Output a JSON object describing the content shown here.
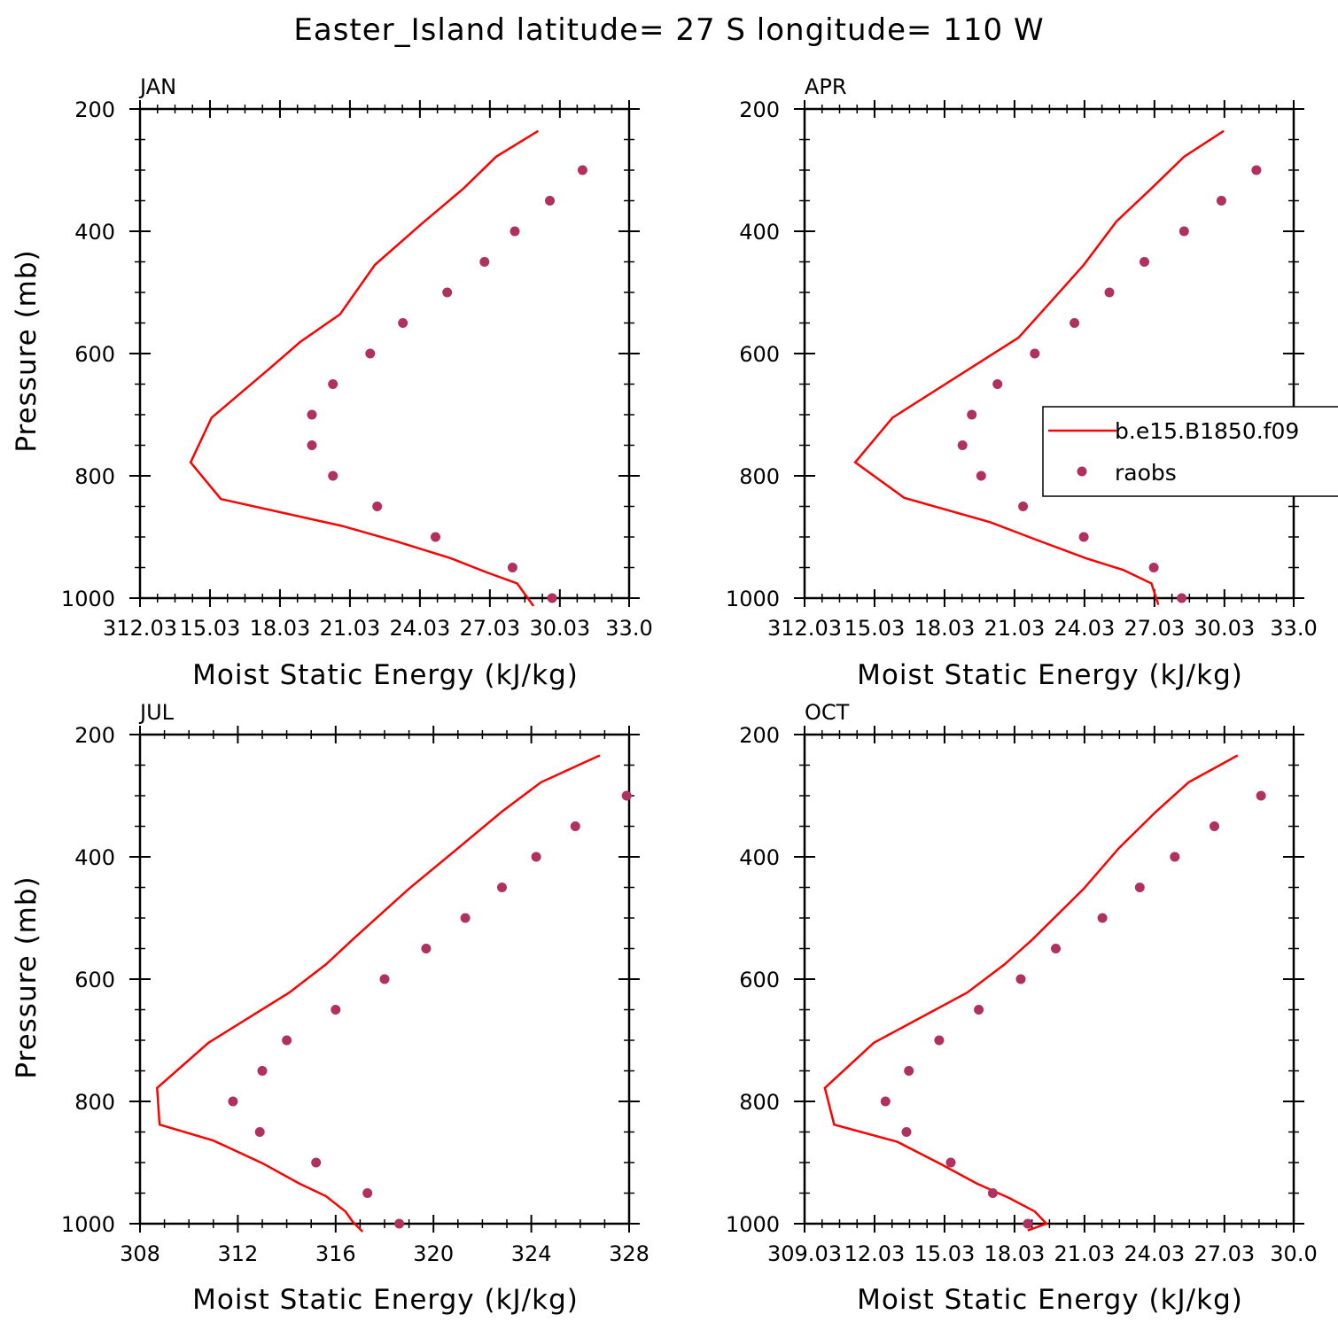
{
  "title": "Easter_Island  latitude= 27 S longitude= 110 W",
  "colors": {
    "model": "#ff0000",
    "obs": "#b03060",
    "axis": "#000000"
  },
  "legend": {
    "series": [
      "b.e15.B1850.f09",
      "raobs"
    ],
    "panel": 1
  },
  "chart_data": [
    {
      "type": "line",
      "panel_label": "JAN",
      "xlabel": "Moist Static Energy (kJ/kg)",
      "ylabel": "Pressure (mb)",
      "xlim": [
        312.03,
        333.0
      ],
      "ylim": [
        1000,
        200
      ],
      "xticks": [
        312.03,
        315.03,
        318.03,
        321.03,
        324.03,
        327.03,
        330.03,
        333.0
      ],
      "xtick_labels": [
        "312.03",
        "15.03",
        "18.03",
        "21.03",
        "24.03",
        "27.03",
        "30.03",
        "33.0"
      ],
      "yticks": [
        200,
        400,
        600,
        800,
        1000
      ],
      "ytick_labels": [
        "200",
        "400",
        "600",
        "800",
        "1000"
      ],
      "series": [
        {
          "name": "b.e15.B1850.f09",
          "kind": "line",
          "x": [
            329.1,
            327.3,
            325.9,
            324.1,
            322.1,
            320.6,
            318.9,
            317.6,
            315.1,
            314.2,
            315.5,
            320.7,
            323.0,
            325.3,
            326.9,
            328.2,
            328.9
          ],
          "y": [
            236,
            278,
            330,
            388,
            455,
            536,
            581,
            624,
            705,
            778,
            838,
            882,
            907,
            934,
            958,
            976,
            1013
          ]
        },
        {
          "name": "raobs",
          "kind": "scatter",
          "x": [
            331.0,
            329.6,
            328.1,
            326.8,
            325.2,
            323.3,
            321.9,
            320.3,
            319.4,
            319.4,
            320.3,
            322.2,
            324.7,
            328.0,
            329.7
          ],
          "y": [
            300,
            350,
            400,
            450,
            500,
            550,
            600,
            650,
            700,
            750,
            800,
            850,
            900,
            950,
            1000
          ]
        }
      ]
    },
    {
      "type": "line",
      "panel_label": "APR",
      "xlabel": "Moist Static Energy (kJ/kg)",
      "ylabel": "",
      "xlim": [
        312.03,
        333.0
      ],
      "ylim": [
        1000,
        200
      ],
      "xticks": [
        312.03,
        315.03,
        318.03,
        321.03,
        324.03,
        327.03,
        330.03,
        333.0
      ],
      "xtick_labels": [
        "312.03",
        "15.03",
        "18.03",
        "21.03",
        "24.03",
        "27.03",
        "30.03",
        "33.0"
      ],
      "yticks": [
        200,
        400,
        600,
        800,
        1000
      ],
      "ytick_labels": [
        "200",
        "400",
        "600",
        "800",
        "1000"
      ],
      "series": [
        {
          "name": "b.e15.B1850.f09",
          "kind": "line",
          "x": [
            330.0,
            328.3,
            326.9,
            325.4,
            324.0,
            322.1,
            321.2,
            319.3,
            315.8,
            314.2,
            316.3,
            320.0,
            322.0,
            324.1,
            325.7,
            326.9,
            327.2
          ],
          "y": [
            236,
            278,
            330,
            384,
            455,
            536,
            574,
            620,
            705,
            778,
            836,
            876,
            905,
            935,
            954,
            976,
            1011
          ]
        },
        {
          "name": "raobs",
          "kind": "scatter",
          "x": [
            331.4,
            329.9,
            328.3,
            326.6,
            325.1,
            323.6,
            321.9,
            320.3,
            319.2,
            318.8,
            319.6,
            321.4,
            324.0,
            327.0,
            328.2
          ],
          "y": [
            300,
            350,
            400,
            450,
            500,
            550,
            600,
            650,
            700,
            750,
            800,
            850,
            900,
            950,
            1000
          ]
        }
      ]
    },
    {
      "type": "line",
      "panel_label": "JUL",
      "xlabel": "Moist Static Energy (kJ/kg)",
      "ylabel": "Pressure (mb)",
      "xlim": [
        308,
        328
      ],
      "ylim": [
        1000,
        200
      ],
      "xticks": [
        308,
        312,
        316,
        320,
        324,
        328
      ],
      "xtick_labels": [
        "308",
        "312",
        "316",
        "320",
        "324",
        "328"
      ],
      "yticks": [
        200,
        400,
        600,
        800,
        1000
      ],
      "ytick_labels": [
        "200",
        "400",
        "600",
        "800",
        "1000"
      ],
      "series": [
        {
          "name": "b.e15.B1850.f09",
          "kind": "line",
          "x": [
            326.8,
            324.4,
            322.8,
            321.0,
            319.0,
            316.7,
            315.6,
            314.1,
            310.8,
            308.7,
            308.8,
            311.0,
            313.0,
            314.5,
            315.6,
            316.4,
            316.7,
            317.1
          ],
          "y": [
            234,
            278,
            326,
            386,
            452,
            535,
            576,
            622,
            704,
            778,
            838,
            864,
            901,
            934,
            955,
            980,
            997,
            1013
          ]
        },
        {
          "name": "raobs",
          "kind": "scatter",
          "x": [
            327.9,
            325.8,
            324.2,
            322.8,
            321.3,
            319.7,
            318.0,
            316.0,
            314.0,
            313.0,
            311.8,
            312.9,
            315.2,
            317.3,
            318.6
          ],
          "y": [
            300,
            350,
            400,
            450,
            500,
            550,
            600,
            650,
            700,
            750,
            800,
            850,
            900,
            950,
            1000
          ]
        }
      ]
    },
    {
      "type": "line",
      "panel_label": "OCT",
      "xlabel": "Moist Static Energy (kJ/kg)",
      "ylabel": "",
      "xlim": [
        309.03,
        330.0
      ],
      "ylim": [
        1000,
        200
      ],
      "xticks": [
        309.03,
        312.03,
        315.03,
        318.03,
        321.03,
        324.03,
        327.03,
        330.0
      ],
      "xtick_labels": [
        "309.03",
        "12.03",
        "15.03",
        "18.03",
        "21.03",
        "24.03",
        "27.03",
        "30.0"
      ],
      "yticks": [
        200,
        400,
        600,
        800,
        1000
      ],
      "ytick_labels": [
        "200",
        "400",
        "600",
        "800",
        "1000"
      ],
      "series": [
        {
          "name": "b.e15.B1850.f09",
          "kind": "line",
          "x": [
            327.6,
            325.5,
            324.1,
            322.5,
            321.0,
            318.8,
            317.6,
            316.0,
            312.0,
            309.9,
            310.3,
            313.0,
            314.9,
            316.4,
            317.8,
            318.9,
            319.4,
            318.6
          ],
          "y": [
            234,
            278,
            326,
            386,
            452,
            535,
            576,
            622,
            704,
            778,
            838,
            866,
            903,
            934,
            958,
            980,
            1000,
            1011
          ]
        },
        {
          "name": "raobs",
          "kind": "scatter",
          "x": [
            328.6,
            326.6,
            324.9,
            323.4,
            321.8,
            319.8,
            318.3,
            316.5,
            314.8,
            313.5,
            312.5,
            313.4,
            315.3,
            317.1,
            318.6
          ],
          "y": [
            300,
            350,
            400,
            450,
            500,
            550,
            600,
            650,
            700,
            750,
            800,
            850,
            900,
            950,
            1000
          ]
        }
      ]
    }
  ]
}
